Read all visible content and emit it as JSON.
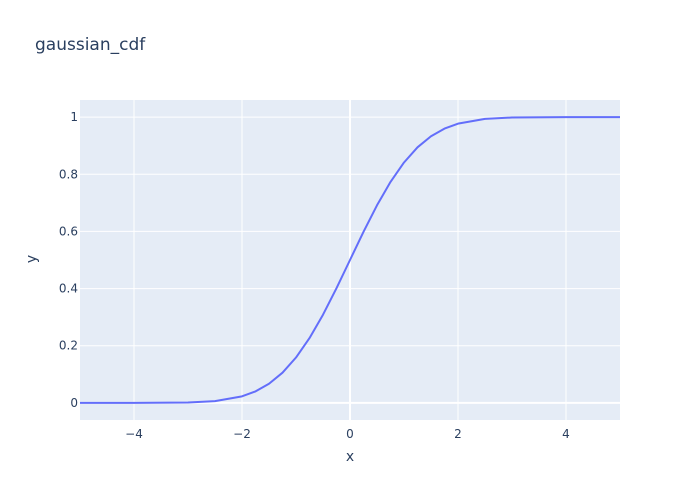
{
  "chart_data": {
    "type": "line",
    "title": "gaussian_cdf",
    "xlabel": "x",
    "ylabel": "y",
    "xlim": [
      -5,
      5
    ],
    "ylim": [
      -0.06,
      1.06
    ],
    "grid": true,
    "legend": "none",
    "x_ticks": [
      -4,
      -2,
      0,
      2,
      4
    ],
    "x_tick_labels": [
      "−4",
      "−2",
      "0",
      "2",
      "4"
    ],
    "y_ticks": [
      0,
      0.2,
      0.4,
      0.6,
      0.8,
      1
    ],
    "y_tick_labels": [
      "0",
      "0.2",
      "0.4",
      "0.6",
      "0.8",
      "1"
    ],
    "colors": {
      "line": "#636efa",
      "plot_bg": "#e5ecf6",
      "grid": "#ffffff",
      "text": "#2a3f5f"
    },
    "series": [
      {
        "x": [
          -5,
          -4,
          -3,
          -2.5,
          -2,
          -1.75,
          -1.5,
          -1.25,
          -1,
          -0.75,
          -0.5,
          -0.25,
          0,
          0.25,
          0.5,
          0.75,
          1,
          1.25,
          1.5,
          1.75,
          2,
          2.5,
          3,
          4,
          5
        ],
        "values": [
          3e-07,
          3e-05,
          0.0013,
          0.0062,
          0.0228,
          0.0401,
          0.0668,
          0.1056,
          0.1587,
          0.2266,
          0.3085,
          0.4013,
          0.5,
          0.5987,
          0.6915,
          0.7734,
          0.8413,
          0.8944,
          0.9332,
          0.9599,
          0.9772,
          0.9938,
          0.9987,
          0.99997,
          0.9999997
        ]
      }
    ]
  }
}
